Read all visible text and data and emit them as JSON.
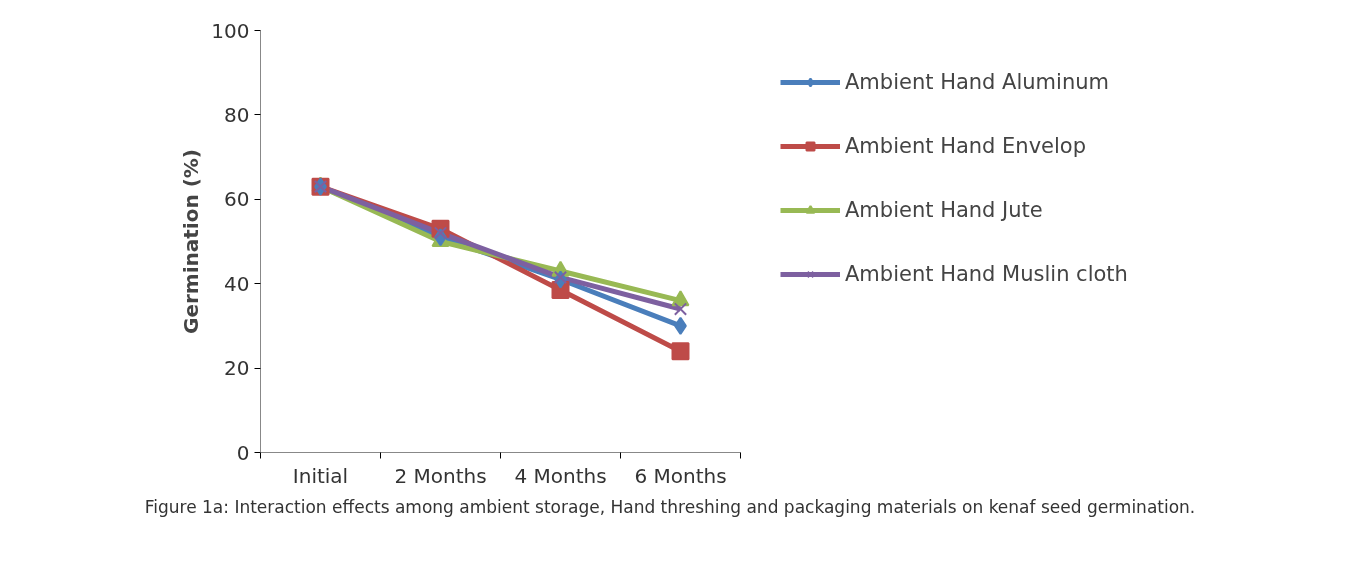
{
  "chart_data": {
    "type": "line",
    "ylabel": "Germination (%)",
    "categories": [
      "Initial",
      "2 Months",
      "4 Months",
      "6 Months"
    ],
    "series": [
      {
        "name": "Ambient Hand Aluminum",
        "color": "#4a7ebb",
        "marker": "diamond",
        "values": [
          63,
          51,
          41,
          30
        ]
      },
      {
        "name": "Ambient Hand Envelop",
        "color": "#be4b48",
        "marker": "square",
        "values": [
          63,
          53,
          38.5,
          24
        ]
      },
      {
        "name": "Ambient Hand Jute",
        "color": "#98b954",
        "marker": "triangle",
        "values": [
          63,
          50,
          43,
          36
        ]
      },
      {
        "name": "Ambient Hand Muslin cloth",
        "color": "#7d60a0",
        "marker": "cross",
        "values": [
          63,
          52,
          41.5,
          34
        ]
      }
    ],
    "ylim": [
      0,
      100
    ],
    "yticks": [
      0,
      20,
      40,
      60,
      80,
      100
    ],
    "grid": false,
    "legend": "right",
    "annotations": [
      "Figure 1a: Interaction effects among ambient storage, Hand threshing and packaging materials on kenaf seed germination."
    ]
  }
}
